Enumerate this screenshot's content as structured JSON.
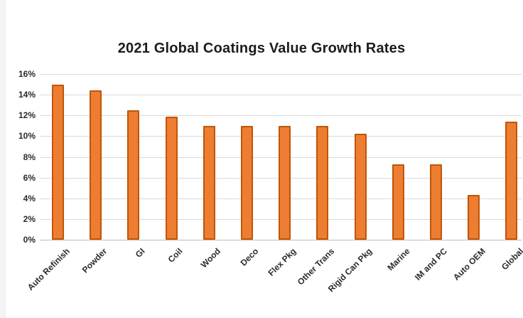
{
  "chart_data": {
    "type": "bar",
    "title": "2021 Global Coatings Value Growth Rates",
    "categories": [
      "Auto Refinish",
      "Powder",
      "GI",
      "Coil",
      "Wood",
      "Deco",
      "Flex Pkg",
      "Other Trans",
      "Rigid Can Pkg",
      "Marine",
      "IM and PC",
      "Auto OEM",
      "Global"
    ],
    "values": [
      15,
      14.4,
      12.5,
      11.9,
      11,
      11,
      11,
      11,
      10.2,
      7.3,
      7.3,
      4.3,
      11.4
    ],
    "unit": "%",
    "xlabel": "",
    "ylabel": "",
    "ylim": [
      0,
      16
    ],
    "ytick_step": 2,
    "y_tick_labels": [
      "16%",
      "14%",
      "12%",
      "10%",
      "8%",
      "6%",
      "4%",
      "2%",
      "0%"
    ],
    "grid": true,
    "legend_position": "none",
    "colors": {
      "bar_fill": "#ED7D31",
      "bar_border": "#C05508",
      "gridline": "#D9D9D9",
      "axis_line": "#BDBDBD",
      "title_text": "#1C1C1C",
      "tick_text": "#2B2B2B",
      "background": "#FFFFFF"
    }
  }
}
